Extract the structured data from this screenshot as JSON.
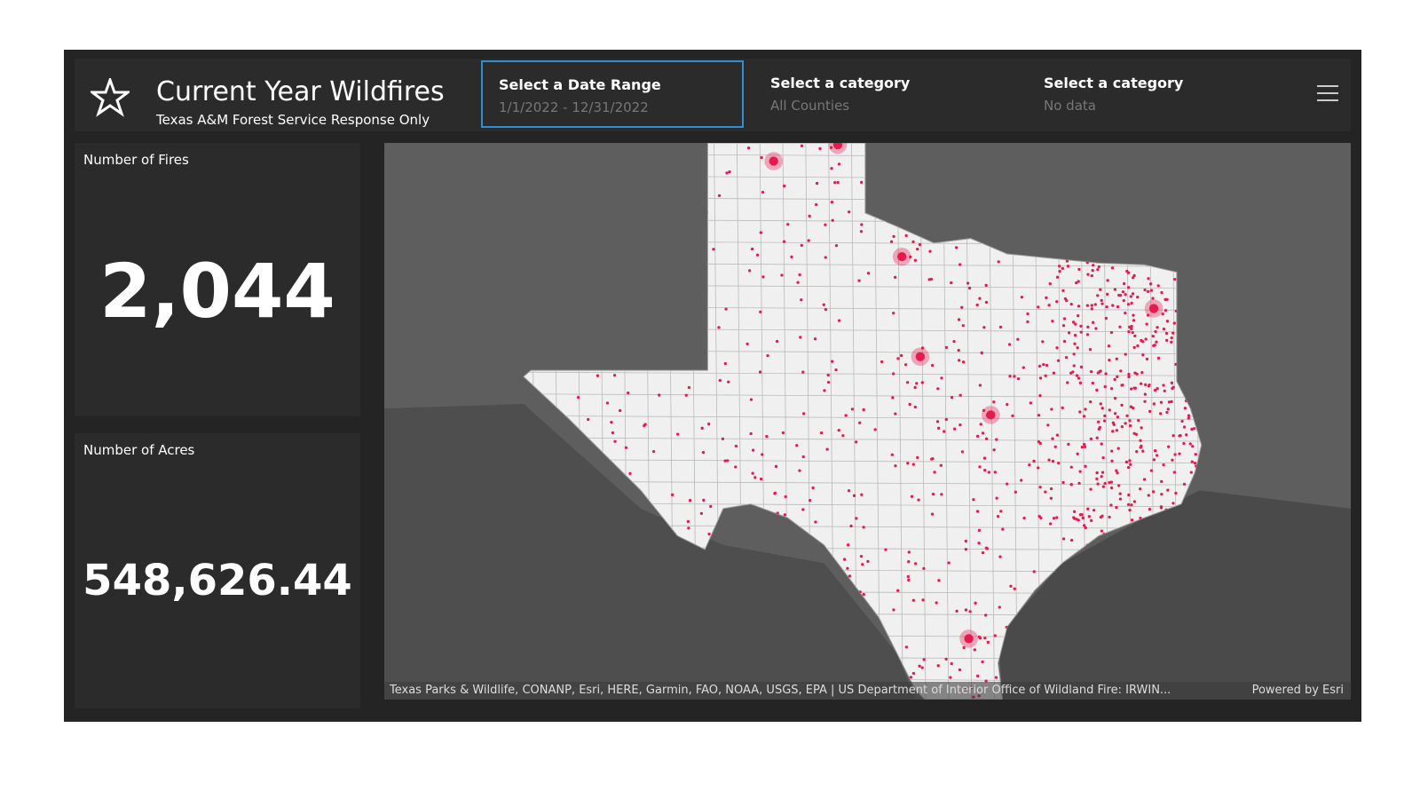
{
  "header": {
    "title": "Current Year Wildfires",
    "subtitle": "Texas A&M Forest Service Response Only"
  },
  "filters": [
    {
      "label": "Select a Date Range",
      "value": "1/1/2022 - 12/31/2022"
    },
    {
      "label": "Select a category",
      "value": "All Counties"
    },
    {
      "label": "Select a category",
      "value": "No data"
    }
  ],
  "indicators": [
    {
      "label": "Number of Fires",
      "value": "2,044"
    },
    {
      "label": "Number of Acres",
      "value": "548,626.44"
    }
  ],
  "map": {
    "attribution": "Texas Parks & Wildlife, CONANP, Esri, HERE, Garmin, FAO, NOAA, USGS, EPA | US Department of Interior Office of Wildland Fire: IRWIN...",
    "powered_by": "Powered by Esri"
  }
}
